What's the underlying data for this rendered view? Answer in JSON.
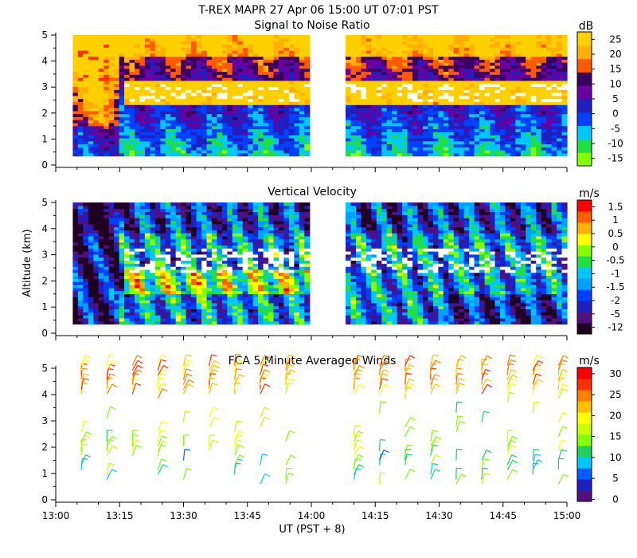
{
  "header": {
    "title": "T-REX  MAPR 27 Apr 06  15:00 UT  07:01  PST"
  },
  "x_axis": {
    "ticks": [
      "13:00",
      "13:15",
      "13:30",
      "13:45",
      "14:00",
      "14:15",
      "14:30",
      "14:45",
      "15:00"
    ],
    "tick_values_min": [
      0,
      15,
      30,
      45,
      60,
      75,
      90,
      105,
      120
    ],
    "label": "UT  (PST + 8)"
  },
  "y_axis": {
    "ticks": [
      "0",
      "1",
      "2",
      "3",
      "4",
      "5"
    ],
    "label": "Altitude (km)"
  },
  "colors": {
    "snr_scale": [
      "#84ff00",
      "#20e040",
      "#00c8ff",
      "#0040ff",
      "#2020c0",
      "#6a00a0",
      "#3a0060",
      "#ff5a00",
      "#ffb000",
      "#ffd000"
    ],
    "vel_scale": [
      "#200020",
      "#501080",
      "#2020c0",
      "#0040ff",
      "#00a0ff",
      "#00c8ff",
      "#20e040",
      "#84ff00",
      "#ffff00",
      "#ffb000",
      "#ff6000",
      "#ff0000"
    ],
    "wind_scale": [
      "#501080",
      "#2020c0",
      "#0060ff",
      "#00c8ff",
      "#20d060",
      "#84ff00",
      "#c8ff00",
      "#ffff00",
      "#ffc000",
      "#ff8000",
      "#ff3000",
      "#ff0000"
    ]
  },
  "chart_data": [
    {
      "type": "heatmap",
      "name": "snr",
      "title": "Signal to Noise Ratio",
      "unit": "dB",
      "xlim": [
        0,
        120
      ],
      "ylim": [
        0,
        5
      ],
      "data_gap_minutes": [
        60,
        68
      ],
      "colorbar_labels": [
        "25",
        "20",
        "15",
        "10",
        "5",
        "0",
        "-5",
        "-10",
        "-15"
      ],
      "colorbar_levels": [
        -15,
        -10,
        -5,
        0,
        5,
        10,
        15,
        20,
        25
      ]
    },
    {
      "type": "heatmap",
      "name": "vertical_velocity",
      "title": "Vertical Velocity",
      "unit": "m/s",
      "xlim": [
        0,
        120
      ],
      "ylim": [
        0,
        5
      ],
      "data_gap_minutes": [
        60,
        68
      ],
      "colorbar_labels": [
        "1.5",
        "1",
        "0.5",
        "0",
        "-0.5",
        "-1",
        "-1.5",
        "-2",
        "-5",
        "-12"
      ],
      "colorbar_levels": [
        -12,
        -5,
        -2,
        -1.5,
        -1,
        -0.5,
        0,
        0.5,
        1,
        1.5
      ]
    },
    {
      "type": "scatter",
      "name": "winds",
      "title": "FCA 5 Minute Averaged Winds",
      "unit": "m/s",
      "xlim": [
        0,
        120
      ],
      "ylim": [
        0,
        5
      ],
      "colorbar_labels": [
        "30",
        "25",
        "20",
        "15",
        "10",
        "5",
        "0"
      ],
      "colorbar_levels": [
        0,
        5,
        10,
        15,
        20,
        25,
        30
      ],
      "profile_times_min": [
        6,
        12,
        18,
        24,
        30,
        36,
        42,
        48,
        54,
        70,
        76,
        82,
        88,
        94,
        100,
        106,
        112,
        118
      ]
    }
  ]
}
